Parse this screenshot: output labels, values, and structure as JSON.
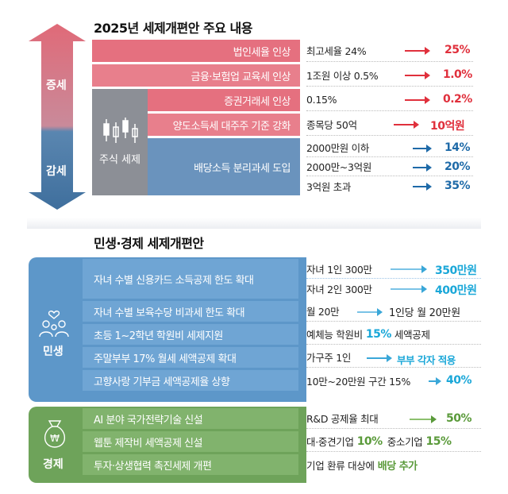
{
  "section1": {
    "title": "2025년 세제개편안 주요 내용",
    "increase_label": "증세",
    "decrease_label": "감세",
    "stock_tax_label": "주식 세제",
    "rows": [
      {
        "label": "법인세율 인상",
        "value": "최고세율 24%",
        "result": "25%"
      },
      {
        "label": "금융·보험업 교육세 인상",
        "value": "1조원 이상 0.5%",
        "result": "1.0%"
      },
      {
        "label": "증권거래세 인상",
        "value": "0.15%",
        "result": "0.2%"
      },
      {
        "label": "양도소득세 대주주 기준 강화",
        "value": "종목당 50억",
        "result": "10억원"
      }
    ],
    "dividend": {
      "label": "배당소득 분리과세 도입",
      "items": [
        {
          "value": "2000만원 이하",
          "result": "14%"
        },
        {
          "value": "2000만~3억원",
          "result": "20%"
        },
        {
          "value": "3억원 초과",
          "result": "35%"
        }
      ]
    }
  },
  "section2": {
    "title": "민생·경제 세제개편안",
    "livelihood_label": "민생",
    "economy_label": "경제",
    "livelihood_rows": [
      {
        "label": "자녀 수별 신용카드 소득공제 한도 확대",
        "items": [
          {
            "value": "자녀 1인 300만",
            "result": "350만원"
          },
          {
            "value": "자녀 2인 300만",
            "result": "400만원"
          }
        ]
      },
      {
        "label": "자녀 수별 보육수당 비과세 한도 확대",
        "value": "월 20만",
        "result": "1인당 월 20만원"
      },
      {
        "label": "초등 1~2학년 학원비 세제지원",
        "value": "예체능 학원비",
        "result": "15%",
        "tail": "세액공제"
      },
      {
        "label": "주말부부 17% 월세 세액공제 확대",
        "value": "가구주 1인",
        "result": "부부 각자 적용"
      },
      {
        "label": "고향사랑 기부금 세액공제율 상향",
        "value": "10만~20만원 구간 15%",
        "result": "40%"
      }
    ],
    "economy_rows": [
      {
        "label": "AI 분야 국가전략기술 신설",
        "value": "R&D 공제율 최대",
        "result": "50%"
      },
      {
        "label": "웹툰 제작비 세액공제 신설",
        "value": "대·중견기업",
        "result": "10%",
        "value2": "중소기업",
        "result2": "15%"
      },
      {
        "label": "투자·상생협력 촉진세제 개편",
        "value": "기업 환류 대상에",
        "result": "배당 추가"
      }
    ]
  },
  "colors": {
    "increase": "#e5707f",
    "decrease": "#4f7fa8",
    "livelihood_bg": "#5d97c9",
    "economy_bg": "#6ea35a"
  }
}
